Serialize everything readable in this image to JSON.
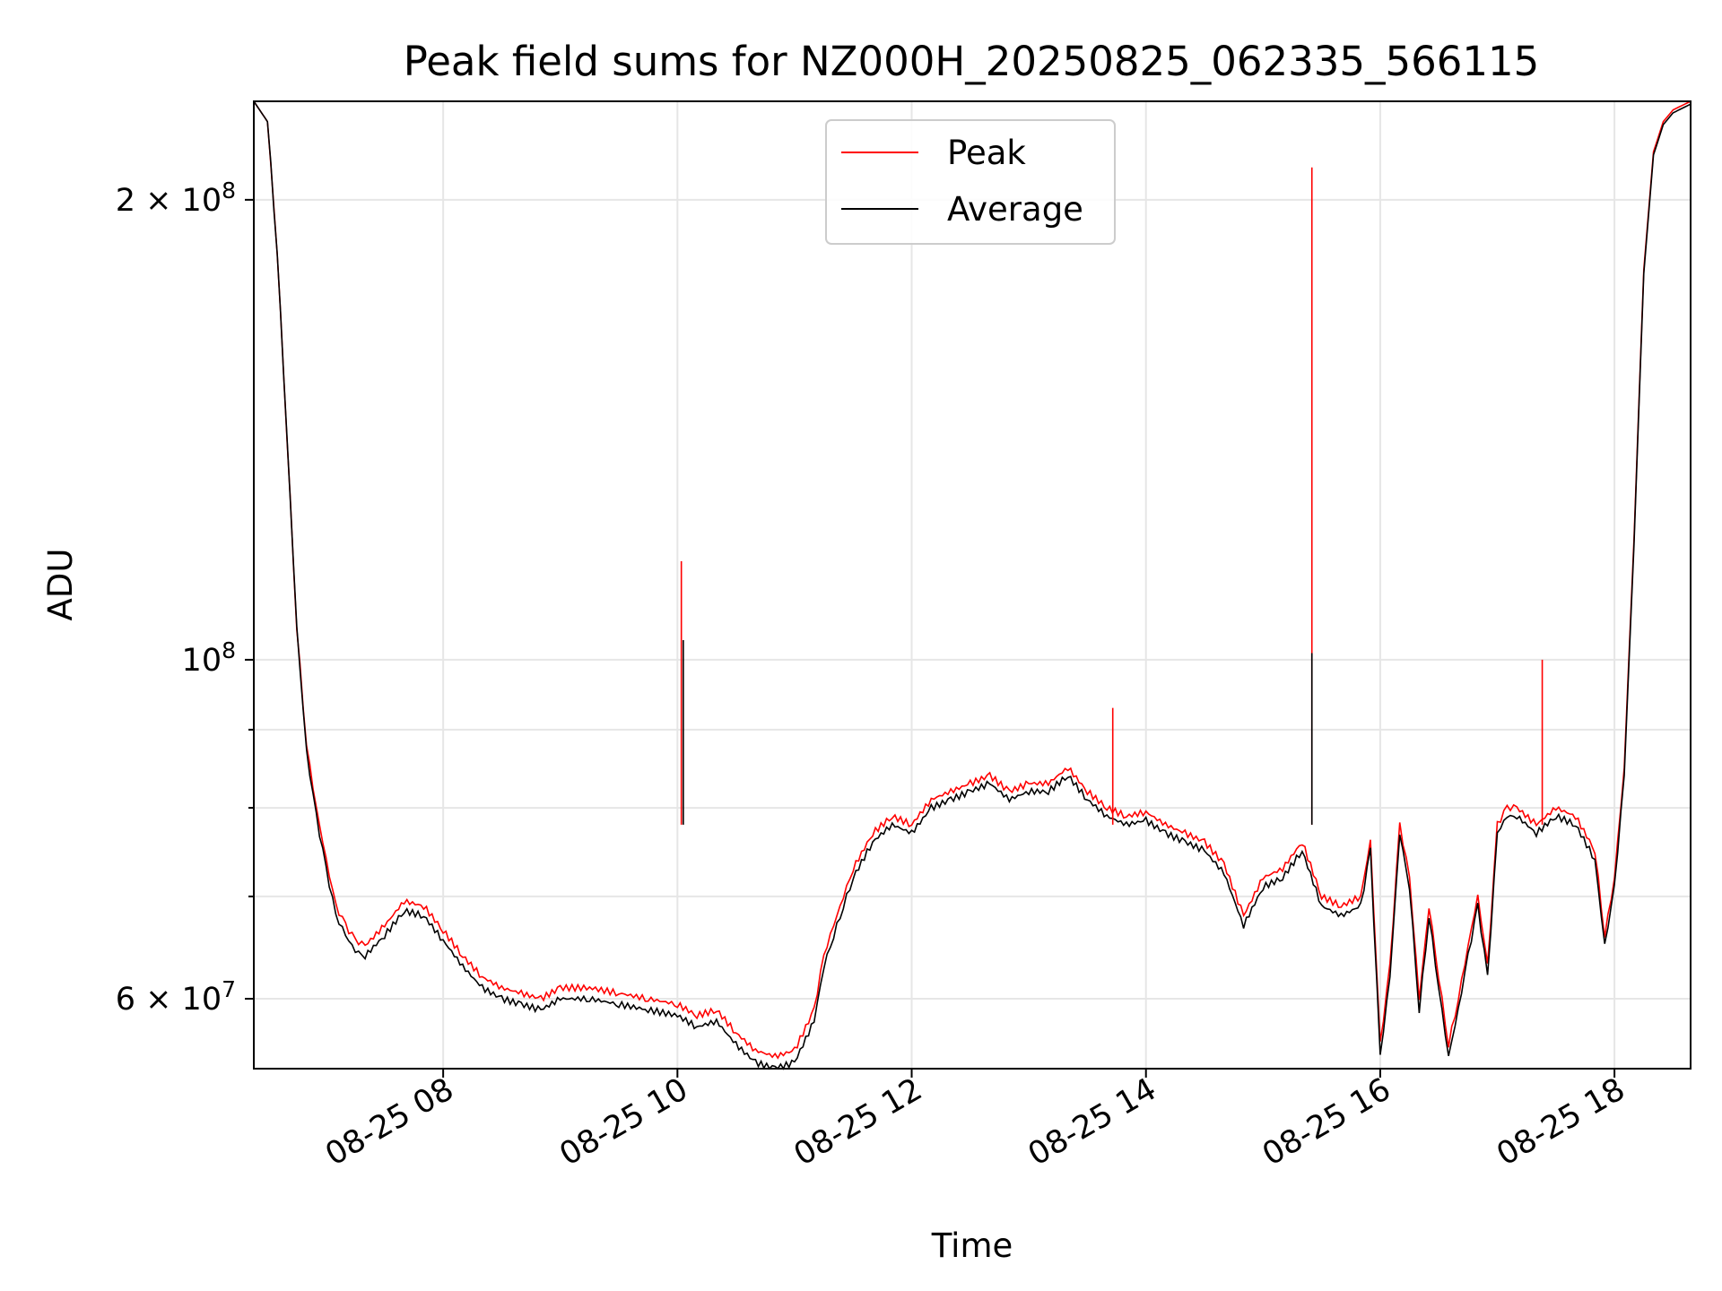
{
  "chart_data": {
    "type": "line",
    "title": "Peak field sums for NZ000H_20250825_062335_566115",
    "xlabel": "Time",
    "ylabel": "ADU",
    "yscale": "log",
    "xlim": [
      "08-25 06:23",
      "08-25 18:39"
    ],
    "ylim": [
      54000000,
      232000000
    ],
    "grid": true,
    "legend_position": "top-center",
    "x_ticks": [
      "08-25 08",
      "08-25 10",
      "08-25 12",
      "08-25 14",
      "08-25 16",
      "08-25 18"
    ],
    "y_ticks": [
      {
        "value": 60000000,
        "base": "6",
        "exp": "7",
        "label": "6 × 10^7"
      },
      {
        "value": 100000000,
        "base": "",
        "exp": "8",
        "label": "10^8"
      },
      {
        "value": 200000000,
        "base": "2",
        "exp": "8",
        "label": "2 × 10^8"
      }
    ],
    "x": [
      "06:23",
      "06:30",
      "06:35",
      "06:40",
      "06:45",
      "06:50",
      "06:55",
      "07:00",
      "07:05",
      "07:10",
      "07:15",
      "07:20",
      "07:30",
      "07:40",
      "07:50",
      "08:00",
      "08:10",
      "08:20",
      "08:30",
      "08:40",
      "08:50",
      "09:00",
      "09:15",
      "09:30",
      "09:45",
      "10:00",
      "10:10",
      "10:20",
      "10:30",
      "10:40",
      "10:50",
      "11:00",
      "11:10",
      "11:15",
      "11:20",
      "11:25",
      "11:30",
      "11:40",
      "11:50",
      "12:00",
      "12:10",
      "12:20",
      "12:30",
      "12:40",
      "12:50",
      "13:00",
      "13:10",
      "13:20",
      "13:30",
      "13:40",
      "13:50",
      "14:00",
      "14:10",
      "14:20",
      "14:30",
      "14:40",
      "14:50",
      "15:00",
      "15:10",
      "15:20",
      "15:30",
      "15:40",
      "15:50",
      "15:55",
      "16:00",
      "16:05",
      "16:10",
      "16:15",
      "16:20",
      "16:25",
      "16:30",
      "16:35",
      "16:40",
      "16:45",
      "16:50",
      "16:55",
      "17:00",
      "17:05",
      "17:10",
      "17:20",
      "17:30",
      "17:40",
      "17:50",
      "17:55",
      "18:00",
      "18:05",
      "18:10",
      "18:15",
      "18:20",
      "18:25",
      "18:30",
      "18:39"
    ],
    "series": [
      {
        "name": "Peak",
        "color": "#ff0000",
        "values": [
          232000000,
          225000000,
          185000000,
          140000000,
          105000000,
          88000000,
          80000000,
          74000000,
          69000000,
          67000000,
          65500000,
          65000000,
          67000000,
          69500000,
          69000000,
          66500000,
          64000000,
          62000000,
          61000000,
          60500000,
          60000000,
          61000000,
          61000000,
          60500000,
          60000000,
          59500000,
          58500000,
          59000000,
          57000000,
          55500000,
          55000000,
          55500000,
          59000000,
          64000000,
          67000000,
          70000000,
          73000000,
          77000000,
          79000000,
          78000000,
          81000000,
          82000000,
          83000000,
          84000000,
          82000000,
          83000000,
          83000000,
          85000000,
          82000000,
          80000000,
          79000000,
          79500000,
          78000000,
          77000000,
          76000000,
          73500000,
          68000000,
          72000000,
          73000000,
          76000000,
          70000000,
          69000000,
          70000000,
          76000000,
          56000000,
          63000000,
          78000000,
          72000000,
          60000000,
          69000000,
          62000000,
          56000000,
          60000000,
          65000000,
          70000000,
          63000000,
          78000000,
          80000000,
          80000000,
          78000000,
          80000000,
          79000000,
          75000000,
          66000000,
          72000000,
          85000000,
          120000000,
          180000000,
          215000000,
          225000000,
          229000000,
          232000000
        ]
      },
      {
        "name": "Average",
        "color": "#000000",
        "values": [
          232000000,
          225000000,
          185000000,
          140000000,
          105000000,
          87000000,
          79000000,
          73000000,
          68000000,
          66000000,
          64500000,
          64000000,
          66000000,
          68500000,
          68000000,
          65500000,
          63000000,
          61000000,
          60000000,
          59500000,
          59000000,
          60000000,
          60000000,
          59500000,
          59000000,
          58500000,
          57500000,
          58000000,
          56000000,
          54500000,
          54000000,
          54500000,
          58000000,
          63000000,
          66000000,
          69000000,
          72000000,
          76000000,
          78000000,
          77000000,
          80000000,
          81000000,
          82000000,
          83000000,
          81000000,
          82000000,
          82000000,
          84000000,
          81000000,
          79000000,
          78000000,
          78500000,
          77000000,
          76000000,
          75000000,
          72500000,
          67000000,
          71000000,
          72000000,
          75000000,
          69000000,
          68000000,
          69000000,
          75000000,
          55000000,
          62000000,
          77000000,
          71000000,
          59000000,
          68000000,
          61000000,
          55000000,
          59000000,
          64000000,
          69000000,
          62000000,
          77000000,
          79000000,
          79000000,
          77000000,
          79000000,
          78000000,
          74000000,
          65000000,
          71000000,
          84000000,
          119000000,
          179000000,
          214000000,
          224000000,
          228000000,
          231000000
        ]
      }
    ],
    "spikes": [
      {
        "series": "Peak",
        "x": "10:02",
        "y": 116000000
      },
      {
        "series": "Average",
        "x": "10:03",
        "y": 103000000
      },
      {
        "series": "Peak",
        "x": "13:43",
        "y": 93000000
      },
      {
        "series": "Peak",
        "x": "15:25",
        "y": 210000000
      },
      {
        "series": "Average",
        "x": "15:25",
        "y": 101000000
      },
      {
        "series": "Peak",
        "x": "17:23",
        "y": 100000000
      }
    ]
  }
}
